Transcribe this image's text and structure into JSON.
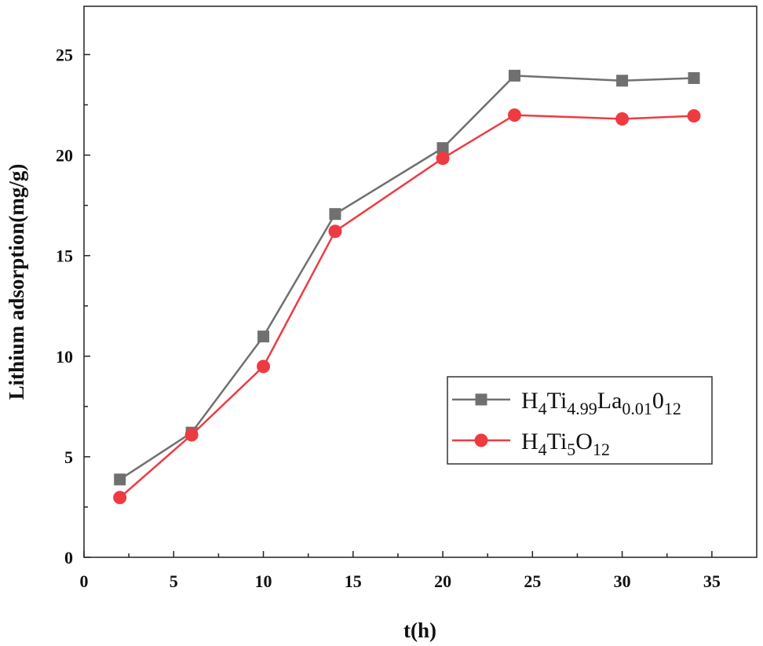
{
  "chart_data": {
    "type": "line",
    "title": "",
    "xlabel": "t(h)",
    "ylabel": "Lithium adsorption(mg/g)",
    "xlim": [
      0,
      37.5
    ],
    "ylim": [
      0,
      27.4
    ],
    "xticks": [
      "0",
      "5",
      "10",
      "15",
      "20",
      "25",
      "30",
      "35"
    ],
    "yticks": [
      "0",
      "5",
      "10",
      "15",
      "20",
      "25"
    ],
    "x": [
      2,
      6,
      10,
      14,
      20,
      24,
      30,
      34
    ],
    "legend_position": "center-right",
    "series": [
      {
        "name": "H4Ti4.99La0.01012",
        "legend_parts": [
          [
            "H",
            ""
          ],
          [
            "4",
            "sub"
          ],
          [
            "Ti",
            ""
          ],
          [
            "4.99",
            "sub"
          ],
          [
            "La",
            ""
          ],
          [
            "0.01",
            "sub"
          ],
          [
            "0",
            ""
          ],
          [
            "12",
            "sub"
          ]
        ],
        "color": "#707070",
        "marker": "square",
        "values": [
          3.87,
          6.2,
          10.98,
          17.07,
          20.35,
          23.95,
          23.7,
          23.83
        ]
      },
      {
        "name": "H4Ti5O12",
        "legend_parts": [
          [
            "H",
            ""
          ],
          [
            "4",
            "sub"
          ],
          [
            "Ti",
            ""
          ],
          [
            "5",
            "sub"
          ],
          [
            "O",
            ""
          ],
          [
            "12",
            "sub"
          ]
        ],
        "color": "#ee3b42",
        "marker": "circle",
        "values": [
          2.97,
          6.09,
          9.49,
          16.21,
          19.84,
          21.99,
          21.8,
          21.95
        ]
      }
    ]
  }
}
